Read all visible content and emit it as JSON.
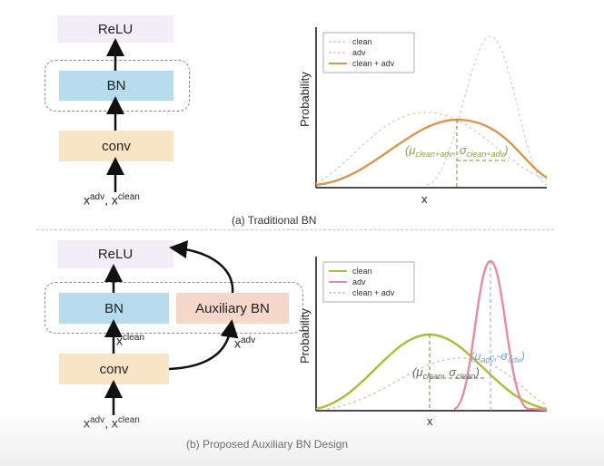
{
  "top": {
    "relu_label": "ReLU",
    "bn_label": "BN",
    "conv_label": "conv",
    "input_label": {
      "a": "x",
      "a_sup": "adv",
      "sep": ", ",
      "b": "x",
      "b_sup": "clean"
    },
    "caption": "(a) Traditional BN",
    "plot": {
      "ylabel": "Probability",
      "xlabel": "x",
      "legend": [
        "clean",
        "adv",
        "clean + adv"
      ],
      "annotation": "(μclean+adv, σclean+adv)"
    }
  },
  "bottom": {
    "relu_label": "ReLU",
    "bn_label": "BN",
    "aux_bn_label": "Auxiliary BN",
    "conv_label": "conv",
    "clean_edge_label": {
      "x": "x",
      "sup": "clean"
    },
    "adv_edge_label": {
      "x": "x",
      "sup": "adv"
    },
    "input_label": {
      "a": "x",
      "a_sup": "adv",
      "sep": ", ",
      "b": "x",
      "b_sup": "clean"
    },
    "caption": "(b) Proposed Auxiliary BN Design",
    "plot": {
      "ylabel": "Probability",
      "xlabel": "x",
      "legend": [
        "clean",
        "adv",
        "clean + adv"
      ],
      "annotation_adv": "(μadv, σadv)",
      "annotation_clean": "(μclean, σclean)"
    }
  },
  "colors": {
    "clean": "#a8bf3a",
    "adv": "#e88aa0",
    "mix": "#d9974a",
    "clean_ann": "#8fa14a",
    "adv_ann": "#7da7d9",
    "clean_mean_line": "#6b8a2e",
    "adv_mean_line": "#7da7d9"
  }
}
